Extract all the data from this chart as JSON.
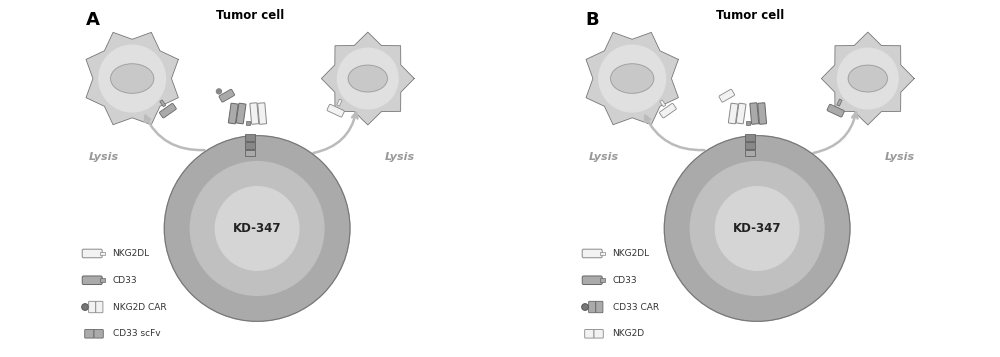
{
  "bg_color": "#ffffff",
  "panel_A_label": "A",
  "panel_B_label": "B",
  "tumor_cell_label": "Tumor cell",
  "kd347_label": "KD-347",
  "lysis_label": "Lysis",
  "panel_A_legend": [
    "NKG2DL",
    "CD33",
    "NKG2D CAR",
    "CD33 scFv"
  ],
  "panel_B_legend": [
    "NKG2DL",
    "CD33",
    "CD33 CAR",
    "NKG2D"
  ],
  "kd_outer_color": "#aaaaaa",
  "kd_mid_color": "#c0c0c0",
  "kd_inner_color": "#d5d5d5",
  "tumor_spike_color": "#d0d0d0",
  "tumor_inner_color": "#e0e0e0",
  "tumor_nucleus_color": "#c8c8c8",
  "white_receptor": "#f2f2f2",
  "gray_receptor": "#aaaaaa",
  "dark_gray": "#888888",
  "arrow_color": "#bbbbbb",
  "lysis_color": "#999999",
  "text_color": "#222222"
}
